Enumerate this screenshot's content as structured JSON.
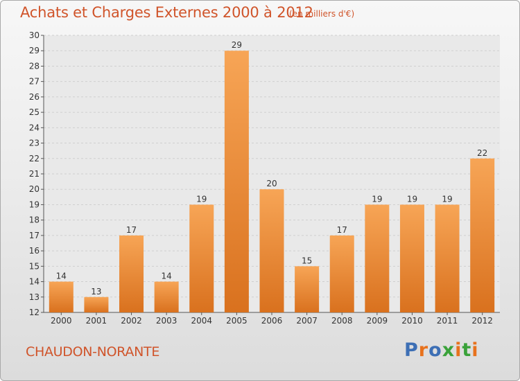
{
  "title": "Achats et Charges Externes 2000 à 2012",
  "unit": "(en milliers d'€)",
  "place": "CHAUDON-NORANTE",
  "logo": {
    "text": "Proxiti",
    "colors": [
      "#3d6fb5",
      "#e8721d",
      "#3d6fb5",
      "#3aa23a",
      "#e8721d",
      "#3aa23a",
      "#e8721d"
    ]
  },
  "chart_data": {
    "type": "bar",
    "categories": [
      "2000",
      "2001",
      "2002",
      "2003",
      "2004",
      "2005",
      "2006",
      "2007",
      "2008",
      "2009",
      "2010",
      "2011",
      "2012"
    ],
    "values": [
      14,
      13,
      17,
      14,
      19,
      29,
      20,
      15,
      17,
      19,
      19,
      19,
      22
    ],
    "ylim": [
      12,
      30
    ],
    "yticks": [
      12,
      13,
      14,
      15,
      16,
      17,
      18,
      19,
      20,
      21,
      22,
      23,
      24,
      25,
      26,
      27,
      28,
      29,
      30
    ],
    "grid": true,
    "bar_color": "#f0943f",
    "legend": "none"
  }
}
